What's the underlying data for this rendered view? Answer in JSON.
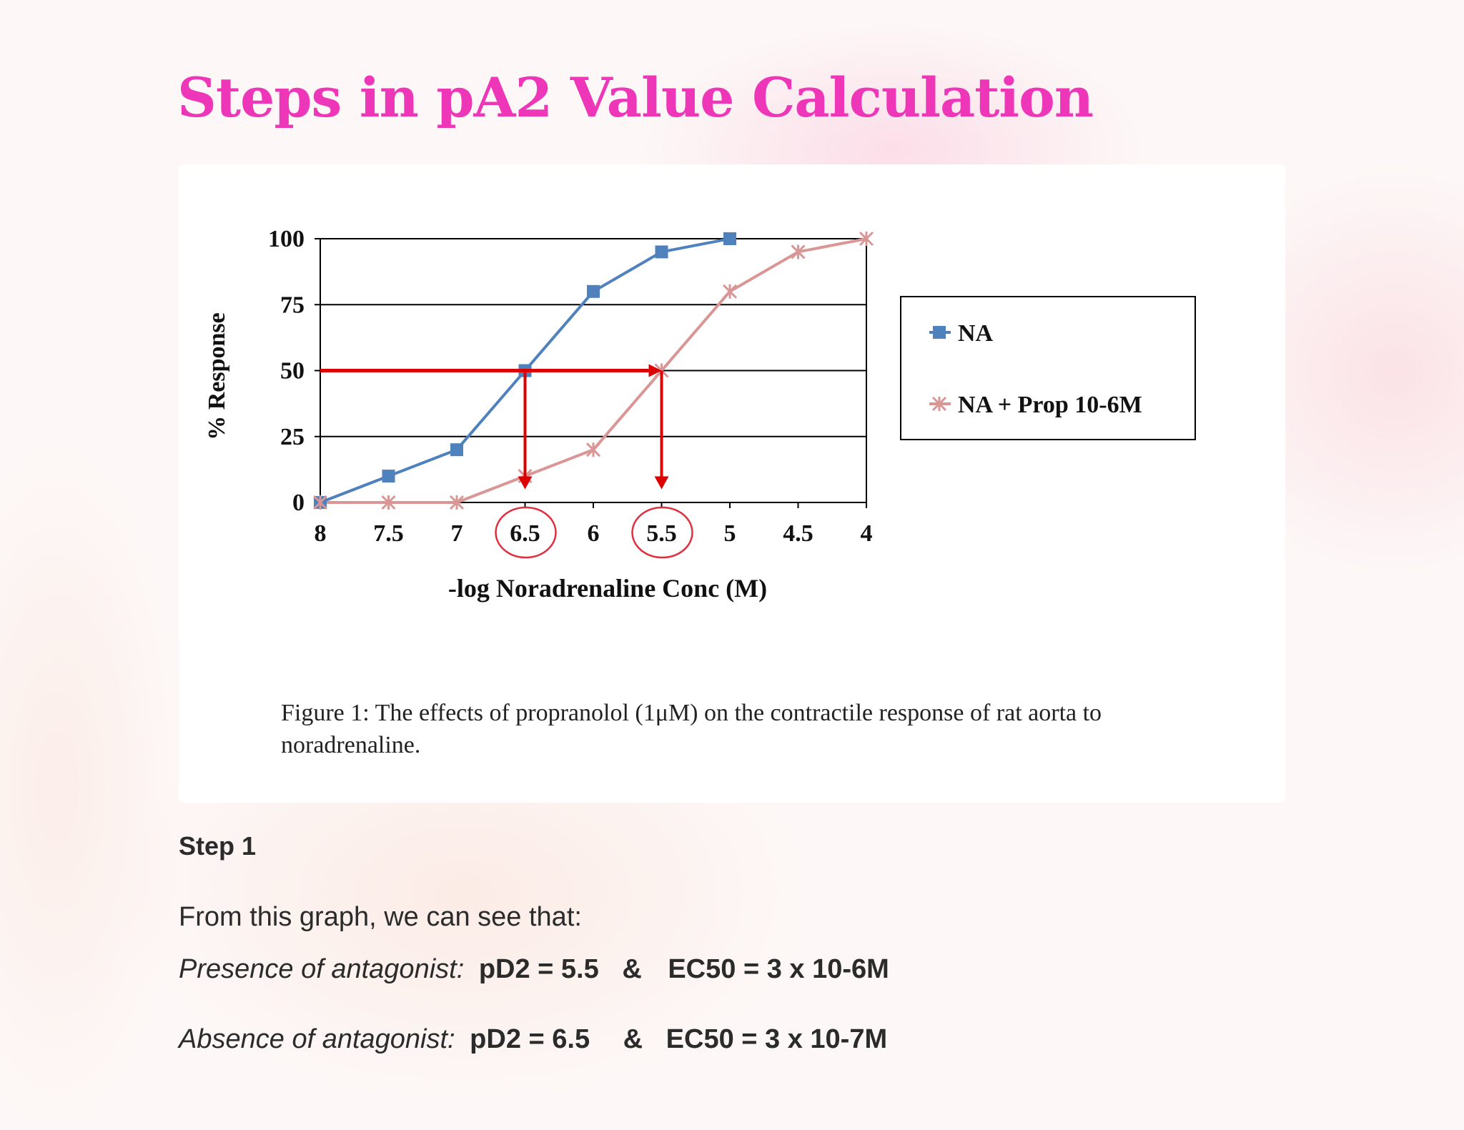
{
  "slide": {
    "title": "Steps in pA2 Value Calculation",
    "caption": "Figure 1: The effects of propranolol (1μM) on the contractile response of rat aorta to noradrenaline.",
    "step_heading": "Step 1",
    "intro": "From this graph, we can see that:",
    "presence_label": "Presence of antagonist:",
    "presence_pd2": "pD2 = 5.5",
    "presence_amp": "&",
    "presence_ec50": "EC50 = 3 x 10-6M",
    "absence_label": "Absence of antagonist:",
    "absence_pd2": "pD2 = 6.5",
    "absence_amp": "&",
    "absence_ec50": "EC50 = 3 x 10-7M"
  },
  "chart_data": {
    "type": "line",
    "xlabel": "-log Noradrenaline Conc (M)",
    "ylabel": "% Response",
    "x": [
      8,
      7.5,
      7,
      6.5,
      6,
      5.5,
      5,
      4.5,
      4
    ],
    "x_tick_labels": [
      "8",
      "7.5",
      "7",
      "6.5",
      "6",
      "5.5",
      "5",
      "4.5",
      "4"
    ],
    "xlim": [
      8,
      4
    ],
    "ylim": [
      0,
      100
    ],
    "y_ticks": [
      0,
      25,
      50,
      75,
      100
    ],
    "grid": true,
    "legend_position": "right",
    "series": [
      {
        "name": "NA",
        "x": [
          8,
          7.5,
          7,
          6.5,
          6,
          5.5,
          5
        ],
        "y": [
          0,
          10,
          20,
          50,
          80,
          95,
          100
        ],
        "color": "#4f81bd",
        "marker": "square"
      },
      {
        "name": "NA + Prop 10-6M",
        "x": [
          8,
          7.5,
          7,
          6.5,
          6,
          5.5,
          5,
          4.5,
          4
        ],
        "y": [
          0,
          0,
          0,
          10,
          20,
          50,
          80,
          95,
          100
        ],
        "color": "#d99694",
        "marker": "x"
      }
    ],
    "annotations": {
      "horizontal_arrow": {
        "y": 50,
        "x_from": 8,
        "x_to": 5.5,
        "color": "#dd0000"
      },
      "vertical_arrows": [
        {
          "x": 6.5,
          "y_from": 50,
          "y_to": 5
        },
        {
          "x": 5.5,
          "y_from": 50,
          "y_to": 5
        }
      ],
      "circled_ticks": [
        "6.5",
        "5.5"
      ]
    }
  }
}
